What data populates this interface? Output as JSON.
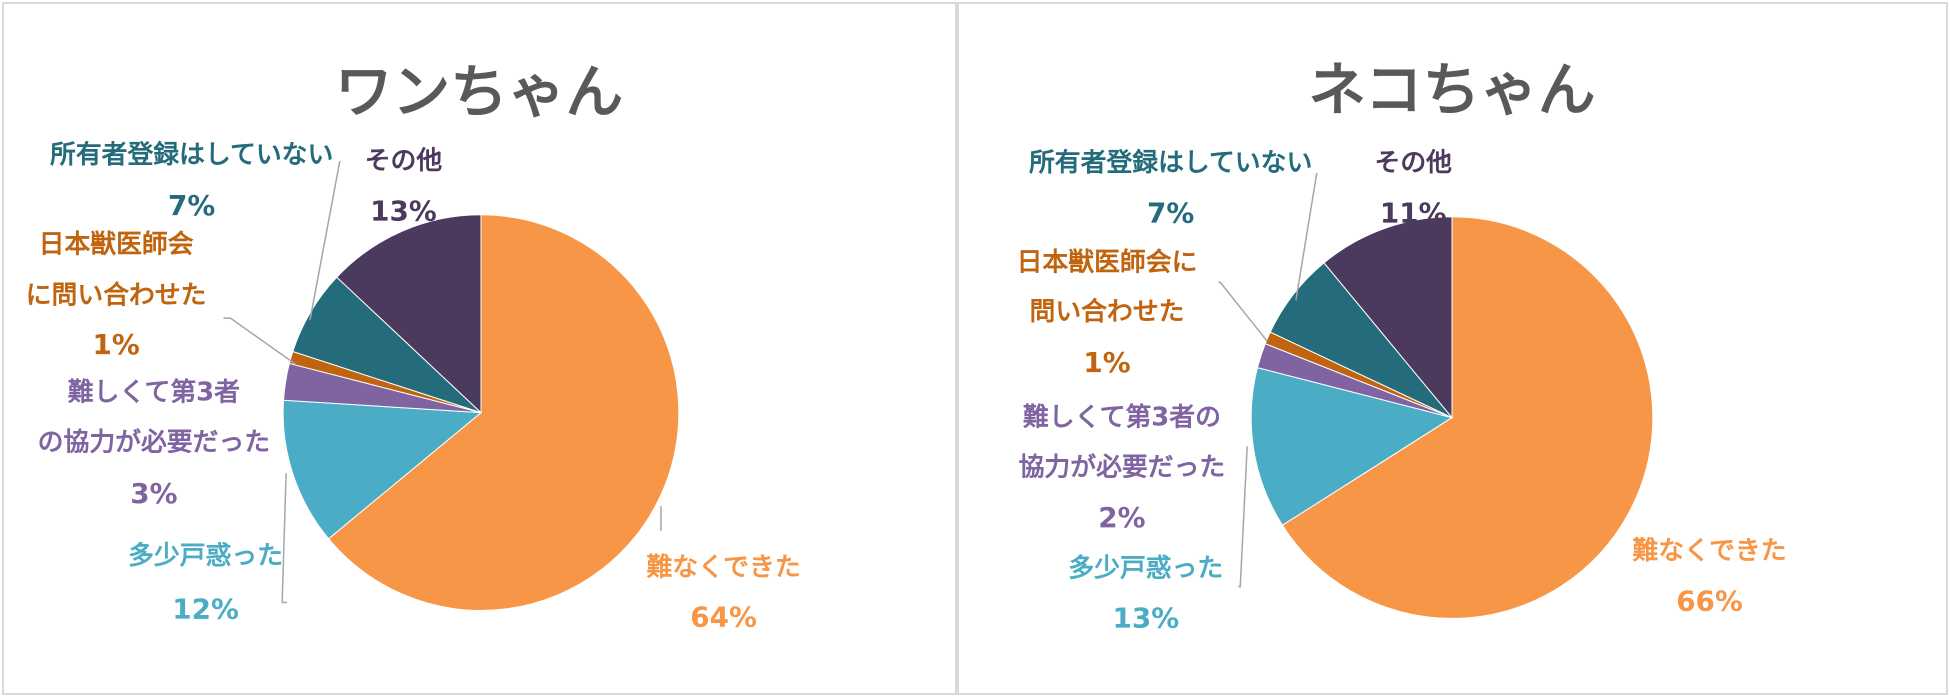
{
  "charts": [
    {
      "type": "pie",
      "title": "ワンちゃん",
      "slices": [
        {
          "label": "難なくできた",
          "value": 64,
          "pct": "64%",
          "color": "#F79646"
        },
        {
          "label": "多少戸惑った",
          "value": 12,
          "pct": "12%",
          "color": "#4BACC6"
        },
        {
          "label": "難しくて第3者の協力が必要だった",
          "value": 3,
          "pct": "3%",
          "color": "#8064A2"
        },
        {
          "label": "日本獣医師会に問い合わせた",
          "value": 1,
          "pct": "1%",
          "color": "#C0640F"
        },
        {
          "label": "所有者登録はしていない",
          "value": 7,
          "pct": "7%",
          "color": "#246B7C"
        },
        {
          "label": "その他",
          "value": 13,
          "pct": "13%",
          "color": "#4B3A5E"
        }
      ]
    },
    {
      "type": "pie",
      "title": "ネコちゃん",
      "slices": [
        {
          "label": "難なくできた",
          "value": 66,
          "pct": "66%",
          "color": "#F79646"
        },
        {
          "label": "多少戸惑った",
          "value": 13,
          "pct": "13%",
          "color": "#4BACC6"
        },
        {
          "label": "難しくて第3者の協力が必要だった",
          "value": 2,
          "pct": "2%",
          "color": "#8064A2"
        },
        {
          "label": "日本獣医師会に問い合わせた",
          "value": 1,
          "pct": "1%",
          "color": "#C0640F"
        },
        {
          "label": "所有者登録はしていない",
          "value": 7,
          "pct": "7%",
          "color": "#246B7C"
        },
        {
          "label": "その他",
          "value": 11,
          "pct": "11%",
          "color": "#4B3A5E"
        }
      ]
    }
  ]
}
